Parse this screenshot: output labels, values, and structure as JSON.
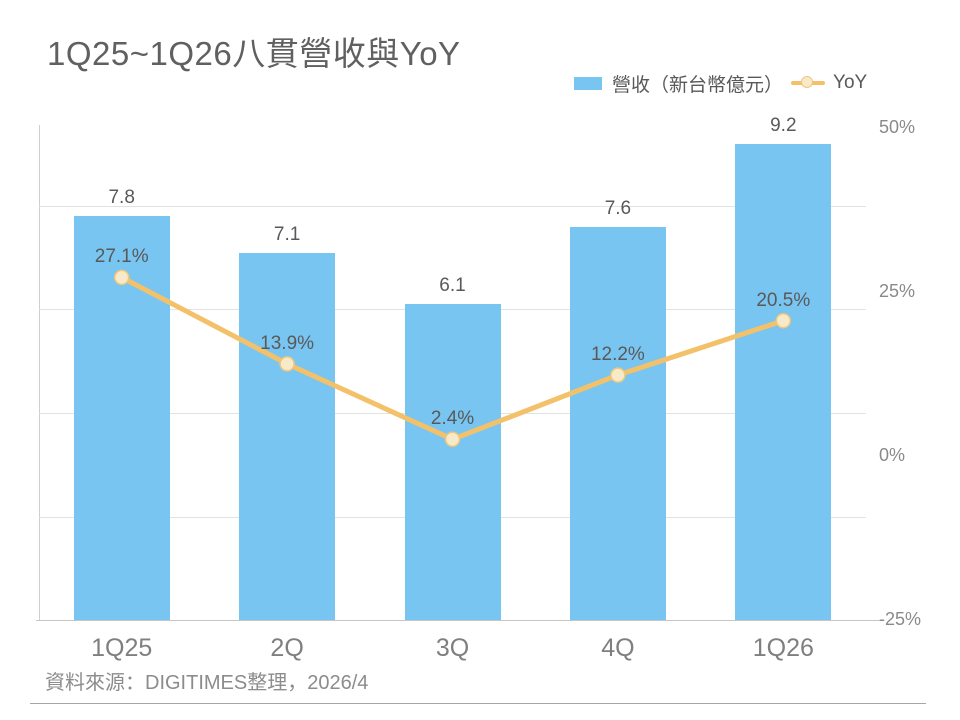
{
  "title": "1Q25~1Q26八貫營收與YoY",
  "legend": {
    "revenue_label": "營收（新台幣億元）",
    "yoy_label": "YoY"
  },
  "footer": {
    "source": "資料來源：DIGITIMES整理，2026/4"
  },
  "colors": {
    "bar": "#79C5F1",
    "line": "#F3C169",
    "marker_fill": "#F8E9C9",
    "marker_stroke": "#EDC77D",
    "label_text": "#595959",
    "axis_text": "#8A8A8A",
    "grid": "#E2E2E2",
    "axisline": "#CFCFCF"
  },
  "chart_data": {
    "type": "bar+line combo",
    "title": "1Q25~1Q26八貫營收與YoY",
    "categories": [
      "1Q25",
      "2Q",
      "3Q",
      "4Q",
      "1Q26"
    ],
    "series": [
      {
        "name": "營收（新台幣億元）",
        "type": "bar",
        "axis": "left (hidden)",
        "values": [
          7.8,
          7.1,
          6.1,
          7.6,
          9.2
        ],
        "labels": [
          "7.8",
          "7.1",
          "6.1",
          "7.6",
          "9.2"
        ]
      },
      {
        "name": "YoY",
        "type": "line",
        "axis": "right",
        "values": [
          27.1,
          13.9,
          2.4,
          12.2,
          20.5
        ],
        "labels": [
          "27.1%",
          "13.9%",
          "2.4%",
          "12.2%",
          "20.5%"
        ]
      }
    ],
    "y2_ticks": [
      "50%",
      "25%",
      "0%",
      "-25%"
    ],
    "y2_range": [
      -25,
      50
    ],
    "y1_range_estimated": [
      0,
      9.6
    ],
    "grid": "horizontal gridlines on",
    "legend_position": "top-right"
  }
}
